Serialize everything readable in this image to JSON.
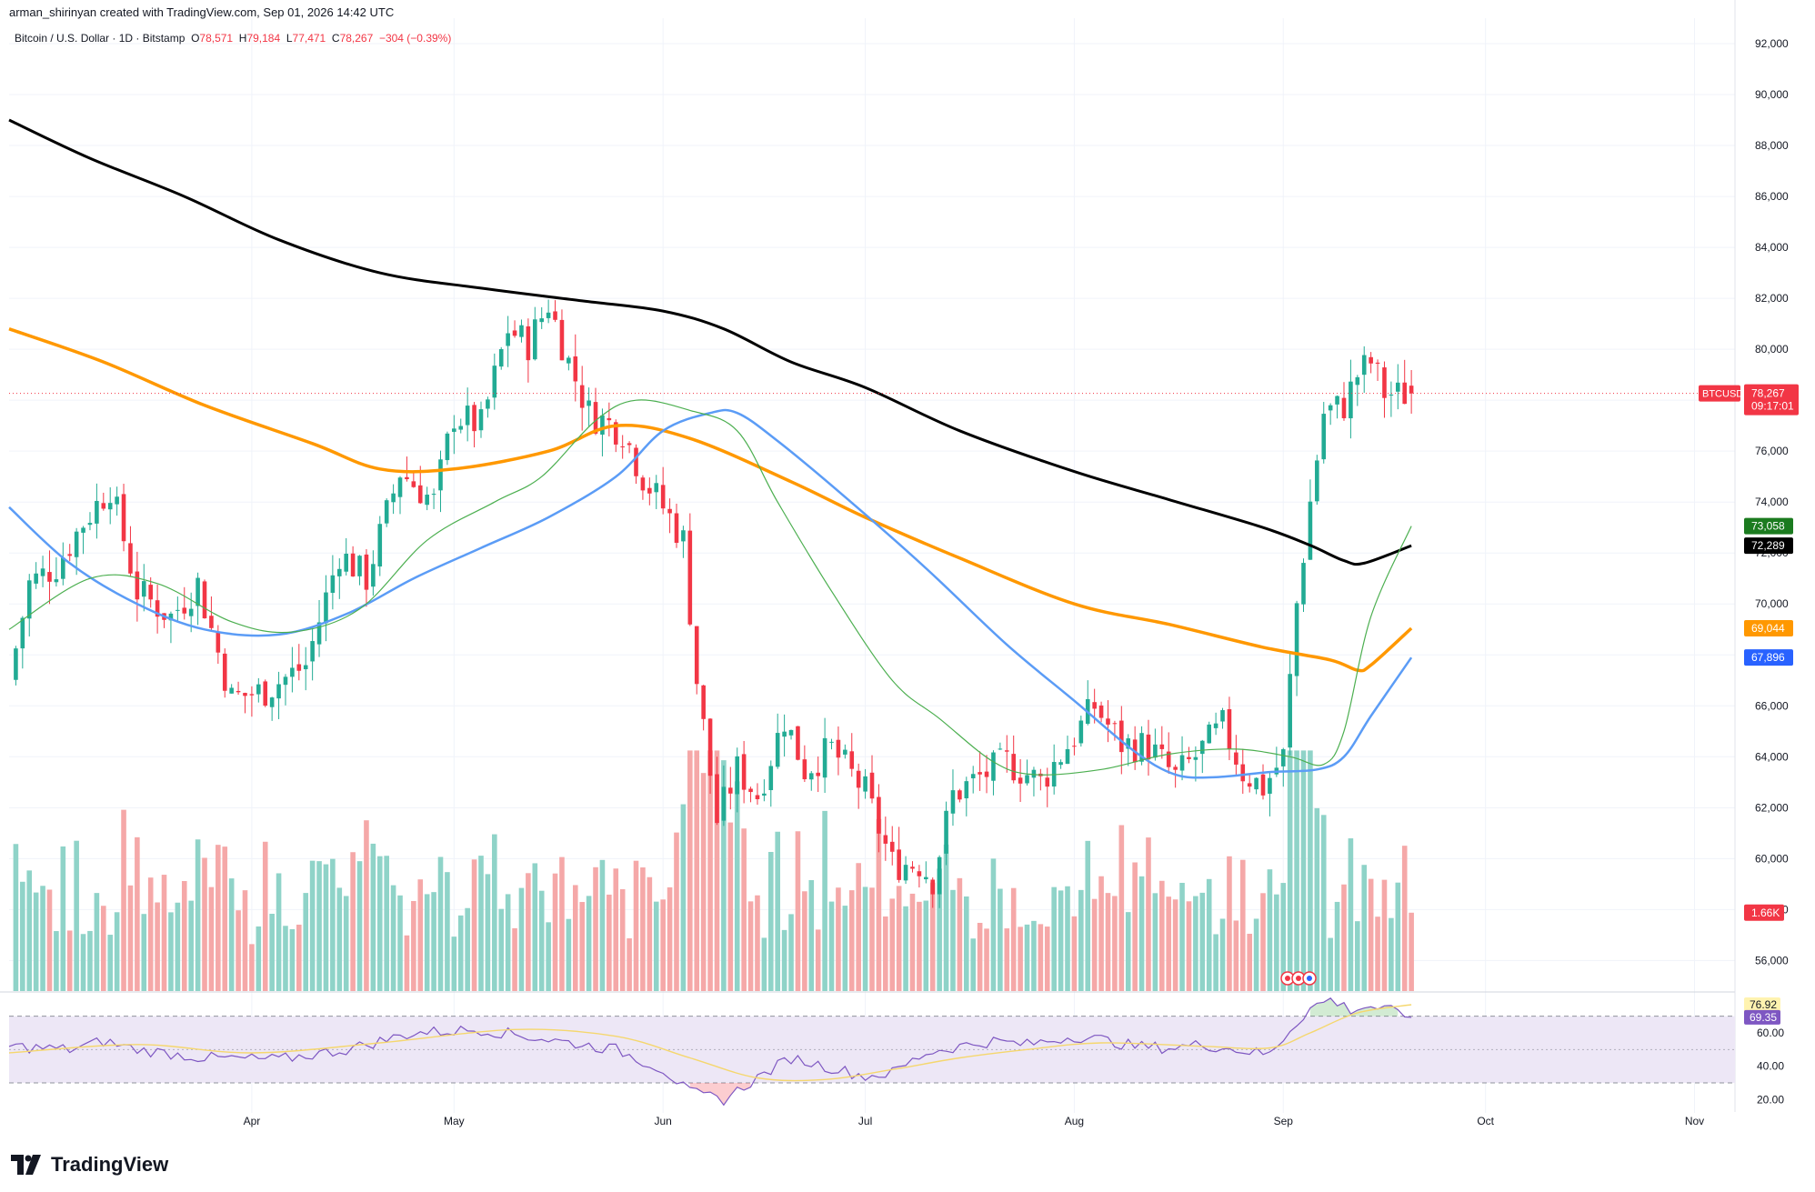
{
  "header": {
    "credit": "arman_shirinyan created with TradingView.com, Sep 01, 2026 14:42 UTC",
    "symbol": "Bitcoin / U.S. Dollar · 1D · Bitstamp",
    "o_label": "O",
    "o": "78,571",
    "h_label": "H",
    "h": "79,184",
    "l_label": "L",
    "l": "77,471",
    "c_label": "C",
    "c": "78,267",
    "change": "−304 (−0.39%)"
  },
  "brand": {
    "name": "TradingView"
  },
  "colors": {
    "up": "#22ab94",
    "down": "#f23645",
    "vol_up": "#8fd3c8",
    "vol_down": "#f5a8a8",
    "sma200": "#000000",
    "sma100": "#ff9800",
    "sma50": "#5b9cf6",
    "sma20": "#4caf50",
    "rsi": "#7e57c2",
    "rsi_ma": "#f5d76e",
    "rsi_band": "#ede7f6"
  },
  "chart_data": [
    {
      "type": "candlestick",
      "ylim": [
        54800,
        93000
      ],
      "x_range": [
        "2026-02-24",
        "2026-11-07"
      ],
      "x_ticks": [
        {
          "label": "Apr",
          "date": "2026-04-01"
        },
        {
          "label": "May",
          "date": "2026-05-01"
        },
        {
          "label": "Jun",
          "date": "2026-06-01"
        },
        {
          "label": "Jul",
          "date": "2026-07-01"
        },
        {
          "label": "Aug",
          "date": "2026-08-01"
        },
        {
          "label": "Sep",
          "date": "2026-09-01"
        },
        {
          "label": "Oct",
          "date": "2026-10-01"
        },
        {
          "label": "Nov",
          "date": "2026-11-01"
        }
      ],
      "y_ticks": [
        "56,000",
        "58,000",
        "60,000",
        "62,000",
        "64,000",
        "66,000",
        "68,000",
        "70,000",
        "72,000",
        "74,000",
        "76,000",
        "78,000",
        "80,000",
        "82,000",
        "84,000",
        "86,000",
        "88,000",
        "90,000",
        "92,000"
      ],
      "last_price": 78267,
      "price_label": {
        "symbol": "BTCUSD",
        "value": "78,267",
        "countdown": "09:17:01"
      },
      "anchors": [
        {
          "date": "2026-02-24",
          "price": 67000
        },
        {
          "date": "2026-02-27",
          "price": 70800
        },
        {
          "date": "2026-03-03",
          "price": 71500
        },
        {
          "date": "2026-03-07",
          "price": 73200
        },
        {
          "date": "2026-03-11",
          "price": 74600
        },
        {
          "date": "2026-03-15",
          "price": 70500
        },
        {
          "date": "2026-03-20",
          "price": 69500
        },
        {
          "date": "2026-03-24",
          "price": 70800
        },
        {
          "date": "2026-03-29",
          "price": 66300
        },
        {
          "date": "2026-04-03",
          "price": 66600
        },
        {
          "date": "2026-04-09",
          "price": 67600
        },
        {
          "date": "2026-04-14",
          "price": 72000
        },
        {
          "date": "2026-04-18",
          "price": 71000
        },
        {
          "date": "2026-04-23",
          "price": 75200
        },
        {
          "date": "2026-04-28",
          "price": 74000
        },
        {
          "date": "2026-05-01",
          "price": 77400
        },
        {
          "date": "2026-05-05",
          "price": 77000
        },
        {
          "date": "2026-05-09",
          "price": 80800
        },
        {
          "date": "2026-05-12",
          "price": 80200
        },
        {
          "date": "2026-05-15",
          "price": 81800
        },
        {
          "date": "2026-05-18",
          "price": 79500
        },
        {
          "date": "2026-05-21",
          "price": 77500
        },
        {
          "date": "2026-05-26",
          "price": 76800
        },
        {
          "date": "2026-05-29",
          "price": 75000
        },
        {
          "date": "2026-06-02",
          "price": 73400
        },
        {
          "date": "2026-06-04",
          "price": 72500
        },
        {
          "date": "2026-06-06",
          "price": 67000
        },
        {
          "date": "2026-06-09",
          "price": 61500
        },
        {
          "date": "2026-06-12",
          "price": 63500
        },
        {
          "date": "2026-06-15",
          "price": 62500
        },
        {
          "date": "2026-06-19",
          "price": 65500
        },
        {
          "date": "2026-06-22",
          "price": 63500
        },
        {
          "date": "2026-06-26",
          "price": 64300
        },
        {
          "date": "2026-07-01",
          "price": 62600
        },
        {
          "date": "2026-07-05",
          "price": 59800
        },
        {
          "date": "2026-07-09",
          "price": 59800
        },
        {
          "date": "2026-07-11",
          "price": 59200
        },
        {
          "date": "2026-07-14",
          "price": 62500
        },
        {
          "date": "2026-07-18",
          "price": 63200
        },
        {
          "date": "2026-07-22",
          "price": 63800
        },
        {
          "date": "2026-07-27",
          "price": 63000
        },
        {
          "date": "2026-08-01",
          "price": 64800
        },
        {
          "date": "2026-08-04",
          "price": 66000
        },
        {
          "date": "2026-08-08",
          "price": 64500
        },
        {
          "date": "2026-08-12",
          "price": 64400
        },
        {
          "date": "2026-08-16",
          "price": 63200
        },
        {
          "date": "2026-08-19",
          "price": 64000
        },
        {
          "date": "2026-08-23",
          "price": 65200
        },
        {
          "date": "2026-08-26",
          "price": 63400
        },
        {
          "date": "2026-08-29",
          "price": 62800
        },
        {
          "date": "2026-09-01",
          "price": 64000
        },
        {
          "date": "2026-09-03",
          "price": 70000
        },
        {
          "date": "2026-09-05",
          "price": 74000
        },
        {
          "date": "2026-09-07",
          "price": 77500
        },
        {
          "date": "2026-09-10",
          "price": 77800
        },
        {
          "date": "2026-09-12",
          "price": 79000
        },
        {
          "date": "2026-09-14",
          "price": 79500
        },
        {
          "date": "2026-09-16",
          "price": 78300
        },
        {
          "date": "2026-09-18",
          "price": 78200
        },
        {
          "date": "2026-09-20",
          "price": 78267
        }
      ],
      "moving_averages": [
        {
          "name": "SMA 200",
          "value": "72,289",
          "color": "#000000",
          "points": [
            [
              "2026-02-24",
              89000
            ],
            [
              "2026-03-08",
              87500
            ],
            [
              "2026-03-22",
              86000
            ],
            [
              "2026-04-05",
              84300
            ],
            [
              "2026-04-20",
              83000
            ],
            [
              "2026-05-05",
              82400
            ],
            [
              "2026-05-20",
              81900
            ],
            [
              "2026-06-01",
              81500
            ],
            [
              "2026-06-10",
              80800
            ],
            [
              "2026-06-20",
              79500
            ],
            [
              "2026-07-01",
              78500
            ],
            [
              "2026-07-15",
              76800
            ],
            [
              "2026-08-01",
              75200
            ],
            [
              "2026-08-15",
              74100
            ],
            [
              "2026-08-29",
              73000
            ],
            [
              "2026-09-05",
              72300
            ],
            [
              "2026-09-10",
              71700
            ],
            [
              "2026-09-13",
              71600
            ],
            [
              "2026-09-20",
              72289
            ]
          ]
        },
        {
          "name": "SMA 100",
          "value": "69,044",
          "color": "#ff9800",
          "points": [
            [
              "2026-02-24",
              80800
            ],
            [
              "2026-03-10",
              79500
            ],
            [
              "2026-03-25",
              77800
            ],
            [
              "2026-04-10",
              76300
            ],
            [
              "2026-04-20",
              75300
            ],
            [
              "2026-05-01",
              75300
            ],
            [
              "2026-05-15",
              76000
            ],
            [
              "2026-05-25",
              77000
            ],
            [
              "2026-06-05",
              76500
            ],
            [
              "2026-06-20",
              74800
            ],
            [
              "2026-07-01",
              73400
            ],
            [
              "2026-07-15",
              71800
            ],
            [
              "2026-08-01",
              70000
            ],
            [
              "2026-08-15",
              69200
            ],
            [
              "2026-08-29",
              68300
            ],
            [
              "2026-09-08",
              67800
            ],
            [
              "2026-09-12",
              67400
            ],
            [
              "2026-09-14",
              67600
            ],
            [
              "2026-09-20",
              69044
            ]
          ]
        },
        {
          "name": "SMA 50",
          "value": "67,896",
          "color": "#5b9cf6",
          "points": [
            [
              "2026-02-24",
              73800
            ],
            [
              "2026-03-05",
              71600
            ],
            [
              "2026-03-15",
              70000
            ],
            [
              "2026-03-25",
              69000
            ],
            [
              "2026-04-05",
              68800
            ],
            [
              "2026-04-15",
              69600
            ],
            [
              "2026-04-25",
              71000
            ],
            [
              "2026-05-05",
              72200
            ],
            [
              "2026-05-15",
              73400
            ],
            [
              "2026-05-25",
              75000
            ],
            [
              "2026-06-01",
              76800
            ],
            [
              "2026-06-08",
              77500
            ],
            [
              "2026-06-12",
              77500
            ],
            [
              "2026-06-18",
              76400
            ],
            [
              "2026-06-28",
              74200
            ],
            [
              "2026-07-10",
              71400
            ],
            [
              "2026-07-22",
              68400
            ],
            [
              "2026-08-01",
              66200
            ],
            [
              "2026-08-10",
              64200
            ],
            [
              "2026-08-16",
              63300
            ],
            [
              "2026-08-22",
              63200
            ],
            [
              "2026-08-30",
              63400
            ],
            [
              "2026-09-06",
              63500
            ],
            [
              "2026-09-10",
              64000
            ],
            [
              "2026-09-14",
              65600
            ],
            [
              "2026-09-20",
              67896
            ]
          ]
        },
        {
          "name": "SMA 20",
          "value": "73,058",
          "color": "#4caf50",
          "points": [
            [
              "2026-02-24",
              69000
            ],
            [
              "2026-03-08",
              71000
            ],
            [
              "2026-03-18",
              70800
            ],
            [
              "2026-03-29",
              69300
            ],
            [
              "2026-04-07",
              68900
            ],
            [
              "2026-04-17",
              69800
            ],
            [
              "2026-04-27",
              72500
            ],
            [
              "2026-05-07",
              74000
            ],
            [
              "2026-05-14",
              75000
            ],
            [
              "2026-05-22",
              77200
            ],
            [
              "2026-05-28",
              78000
            ],
            [
              "2026-06-05",
              77600
            ],
            [
              "2026-06-12",
              76800
            ],
            [
              "2026-06-18",
              74000
            ],
            [
              "2026-06-26",
              70500
            ],
            [
              "2026-07-05",
              67000
            ],
            [
              "2026-07-12",
              65500
            ],
            [
              "2026-07-20",
              63800
            ],
            [
              "2026-07-26",
              63300
            ],
            [
              "2026-08-05",
              63500
            ],
            [
              "2026-08-15",
              64100
            ],
            [
              "2026-08-25",
              64300
            ],
            [
              "2026-09-02",
              64000
            ],
            [
              "2026-09-07",
              63700
            ],
            [
              "2026-09-10",
              65000
            ],
            [
              "2026-09-14",
              69500
            ],
            [
              "2026-09-20",
              73058
            ]
          ]
        }
      ]
    },
    {
      "type": "bar",
      "name": "Volume",
      "value": "1.66K",
      "ylim": [
        0,
        5200
      ]
    },
    {
      "type": "line",
      "name": "RSI",
      "ylim": [
        12,
        84
      ],
      "y_ticks": [
        "20.00",
        "40.00",
        "60.00"
      ],
      "bands": [
        30,
        70
      ],
      "mid": 50,
      "rsi_value": "69.35",
      "rsi_ma_value": "76.92",
      "rsi_points": [
        [
          "2026-02-24",
          52
        ],
        [
          "2026-03-05",
          50
        ],
        [
          "2026-03-10",
          55
        ],
        [
          "2026-03-15",
          50
        ],
        [
          "2026-03-25",
          45
        ],
        [
          "2026-04-05",
          44
        ],
        [
          "2026-04-15",
          50
        ],
        [
          "2026-04-25",
          60
        ],
        [
          "2026-05-05",
          62
        ],
        [
          "2026-05-15",
          56
        ],
        [
          "2026-05-25",
          50
        ],
        [
          "2026-06-01",
          38
        ],
        [
          "2026-06-05",
          24
        ],
        [
          "2026-06-10",
          20
        ],
        [
          "2026-06-15",
          33
        ],
        [
          "2026-06-20",
          45
        ],
        [
          "2026-06-25",
          40
        ],
        [
          "2026-07-01",
          34
        ],
        [
          "2026-07-05",
          36
        ],
        [
          "2026-07-10",
          48
        ],
        [
          "2026-07-15",
          52
        ],
        [
          "2026-07-20",
          55
        ],
        [
          "2026-07-25",
          53
        ],
        [
          "2026-08-01",
          58
        ],
        [
          "2026-08-05",
          56
        ],
        [
          "2026-08-10",
          52
        ],
        [
          "2026-08-15",
          51
        ],
        [
          "2026-08-20",
          53
        ],
        [
          "2026-08-25",
          50
        ],
        [
          "2026-08-30",
          47
        ],
        [
          "2026-09-02",
          62
        ],
        [
          "2026-09-05",
          75
        ],
        [
          "2026-09-08",
          80
        ],
        [
          "2026-09-11",
          74
        ],
        [
          "2026-09-14",
          76
        ],
        [
          "2026-09-17",
          73
        ],
        [
          "2026-09-20",
          69.35
        ]
      ],
      "rsi_ma_points": [
        [
          "2026-02-24",
          48
        ],
        [
          "2026-03-15",
          53
        ],
        [
          "2026-04-01",
          48
        ],
        [
          "2026-04-20",
          54
        ],
        [
          "2026-05-10",
          62
        ],
        [
          "2026-05-25",
          58
        ],
        [
          "2026-06-05",
          45
        ],
        [
          "2026-06-15",
          33
        ],
        [
          "2026-06-25",
          32
        ],
        [
          "2026-07-05",
          38
        ],
        [
          "2026-07-15",
          45
        ],
        [
          "2026-07-25",
          50
        ],
        [
          "2026-08-05",
          54
        ],
        [
          "2026-08-20",
          52
        ],
        [
          "2026-08-30",
          51
        ],
        [
          "2026-09-05",
          60
        ],
        [
          "2026-09-12",
          72
        ],
        [
          "2026-09-20",
          76.92
        ]
      ]
    }
  ]
}
